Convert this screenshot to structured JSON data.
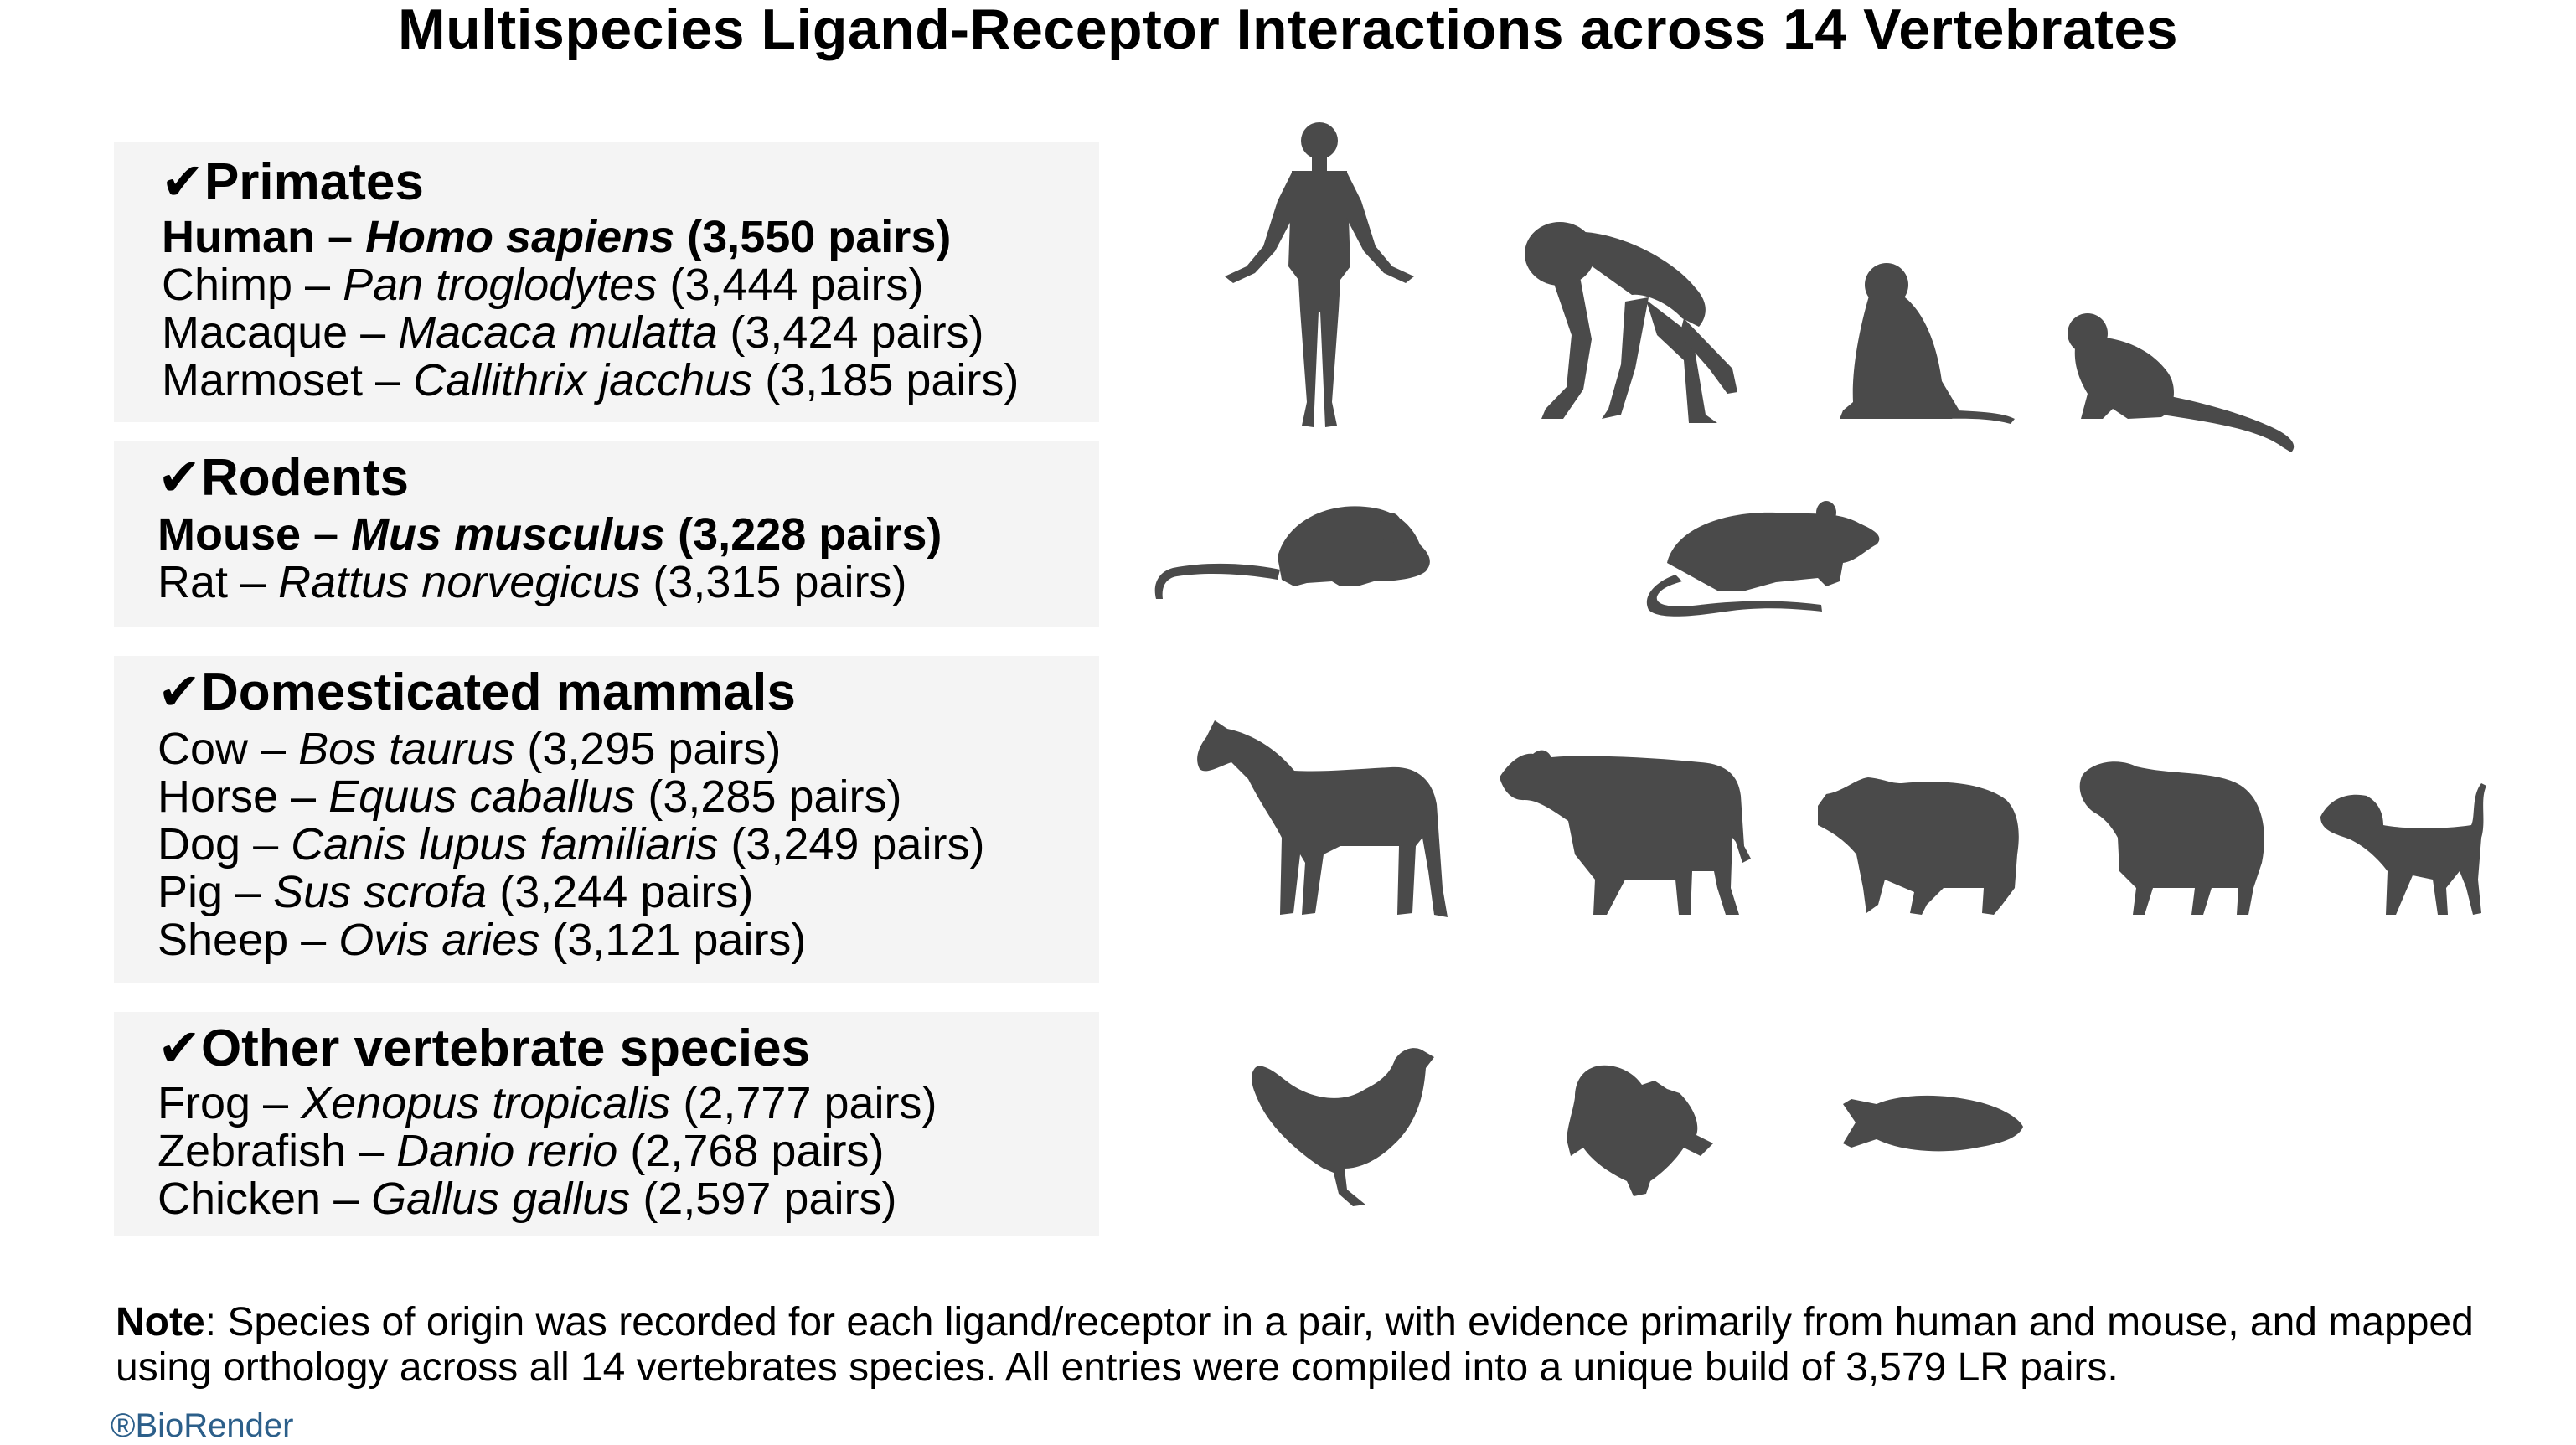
{
  "title": "Multispecies Ligand-Receptor Interactions across 14 Vertebrates",
  "groups": [
    {
      "heading": "✔Primates",
      "species": [
        {
          "common": "Human",
          "latin": "Homo sapiens",
          "pairs": "(3,550 pairs)",
          "bold": true
        },
        {
          "common": "Chimp",
          "latin": "Pan troglodytes",
          "pairs": "(3,444 pairs)",
          "bold": false
        },
        {
          "common": "Macaque",
          "latin": "Macaca mulatta",
          "pairs": "(3,424 pairs)",
          "bold": false
        },
        {
          "common": "Marmoset",
          "latin": "Callithrix jacchus",
          "pairs": "(3,185 pairs)",
          "bold": false
        }
      ]
    },
    {
      "heading": "✔Rodents",
      "species": [
        {
          "common": "Mouse",
          "latin": "Mus musculus",
          "pairs": "(3,228 pairs)",
          "bold": true
        },
        {
          "common": "Rat",
          "latin": "Rattus norvegicus",
          "pairs": "(3,315 pairs)",
          "bold": false
        }
      ]
    },
    {
      "heading": "✔Domesticated mammals",
      "species": [
        {
          "common": "Cow",
          "latin": "Bos taurus",
          "pairs": "(3,295 pairs)",
          "bold": false
        },
        {
          "common": "Horse",
          "latin": "Equus caballus",
          "pairs": "(3,285 pairs)",
          "bold": false
        },
        {
          "common": "Dog",
          "latin": "Canis lupus familiaris",
          "pairs": "(3,249 pairs)",
          "bold": false
        },
        {
          "common": "Pig",
          "latin": "Sus scrofa",
          "pairs": "(3,244 pairs)",
          "bold": false
        },
        {
          "common": "Sheep",
          "latin": "Ovis aries",
          "pairs": "(3,121 pairs)",
          "bold": false
        }
      ]
    },
    {
      "heading": "✔Other vertebrate species",
      "species": [
        {
          "common": "Frog",
          "latin": "Xenopus tropicalis",
          "pairs": "(2,777 pairs)",
          "bold": false
        },
        {
          "common": "Zebrafish",
          "latin": "Danio rerio",
          "pairs": "(2,768 pairs)",
          "bold": false
        },
        {
          "common": "Chicken",
          "latin": "Gallus gallus",
          "pairs": "(2,597 pairs)",
          "bold": false
        }
      ]
    }
  ],
  "note": {
    "label": "Note",
    "text": ": Species of origin was recorded for each ligand/receptor in a pair, with evidence primarily from human and mouse, and mapped using orthology across all 14 vertebrates species. All entries were compiled into a unique build of 3,579 LR pairs."
  },
  "brand": "®BioRender",
  "silhouette_color": "#4a4a4a",
  "panel_color": "#f4f4f4"
}
